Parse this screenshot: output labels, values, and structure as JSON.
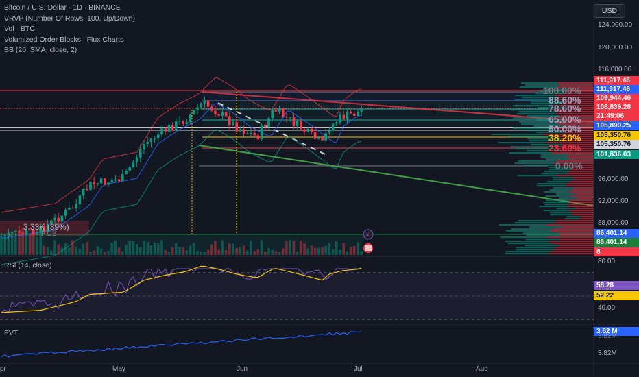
{
  "legend": {
    "symbol": "Bitcoin / U.S. Dollar · 1D · BINANCE",
    "vrvp": "VRVP (Number Of Rows, 100, Up/Down)",
    "vol": "Vol · BTC",
    "vob": "Volumized Order Blocks | Flux Charts",
    "bb": "BB (20, SMA, close, 2)"
  },
  "currency_button": "USD",
  "price_axis": [
    "124,000.00",
    "120,000.00",
    "116,000.00",
    "96,000.00",
    "92,000.00",
    "88,000.00"
  ],
  "price_tags": [
    {
      "text": "111,917.46",
      "bg": "#f23645"
    },
    {
      "text": "111,917.46",
      "bg": "#2962ff"
    },
    {
      "text": "109,944.46",
      "bg": "#f23645"
    },
    {
      "text": "108,839.28",
      "bg": "#f23645"
    },
    {
      "text": "21:49:06",
      "bg": "#f23645"
    },
    {
      "text": "105,890.25",
      "bg": "#2962ff"
    },
    {
      "text": "105,350.76",
      "bg": "#f7c600"
    },
    {
      "text": "105,350.76",
      "bg": "#d1d4dc"
    },
    {
      "text": "101,836.03",
      "bg": "#089981"
    },
    {
      "text": "86,401.14",
      "bg": "#2962ff"
    },
    {
      "text": "86,401.14",
      "bg": "#1b7f3a"
    },
    {
      "text": "8",
      "bg": "#f23645"
    }
  ],
  "fib_labels": [
    {
      "text": "100.00%",
      "color": "#787b86"
    },
    {
      "text": "88.60%",
      "color": "#9aa4c0"
    },
    {
      "text": "78.60%",
      "color": "#9aa4c0"
    },
    {
      "text": "65.00%",
      "color": "#9aa4c0"
    },
    {
      "text": "50.00%",
      "color": "#9aa4c0"
    },
    {
      "text": "38.20%",
      "color": "#f7c600"
    },
    {
      "text": "23.60%",
      "color": "#f23645"
    },
    {
      "text": "0.00%",
      "color": "#787b86"
    }
  ],
  "order_block_label": "3.33K (39%)",
  "order_block_sub": "POB",
  "rsi": {
    "label": "RSI (14, close)",
    "axis": [
      "80.00",
      "40.00"
    ],
    "tags": [
      {
        "text": "58.28",
        "bg": "#7e57c2"
      },
      {
        "text": "52.22",
        "bg": "#f7c600"
      }
    ]
  },
  "pvt": {
    "label": "PVT",
    "axis": [
      "3.82M",
      "3.82M"
    ],
    "tag": {
      "text": "3.82 M",
      "bg": "#2962ff"
    }
  },
  "time_axis": [
    "pr",
    "May",
    "Jun",
    "Jul",
    "Aug"
  ],
  "colors": {
    "up": "#089981",
    "down": "#f23645",
    "bg": "#131722",
    "rsi": "#7e57c2",
    "rsi_ma": "#f7c600",
    "pvt": "#2962ff"
  }
}
